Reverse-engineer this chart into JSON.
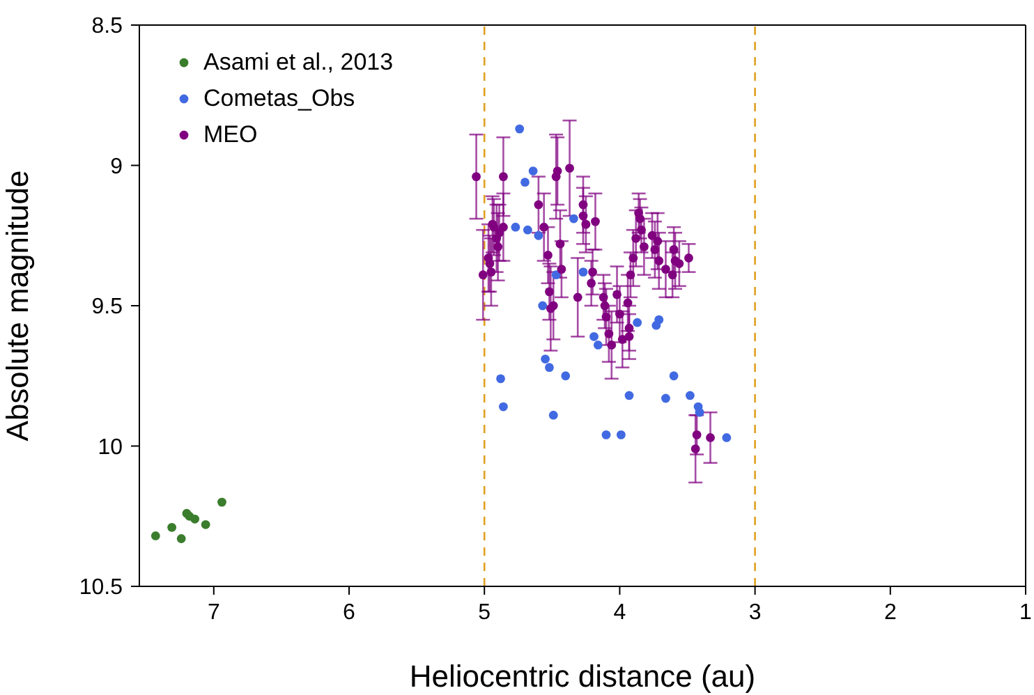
{
  "chart_data": {
    "type": "scatter",
    "xlabel": "Heliocentric distance (au)",
    "ylabel": "Absolute magnitude",
    "xlim": [
      7.55,
      1
    ],
    "xticks": [
      7,
      6,
      5,
      4,
      3,
      2,
      1
    ],
    "ylim": [
      10.5,
      8.5
    ],
    "yticks": [
      {
        "value": 8.5,
        "label": "8.5"
      },
      {
        "value": 9,
        "label": "9"
      },
      {
        "value": 9.5,
        "label": "9.5"
      },
      {
        "value": 10,
        "label": "10"
      },
      {
        "value": 10.5,
        "label": "10.5"
      }
    ],
    "legend": "top left",
    "marker": "circle",
    "ref_lines": [
      {
        "axis": "x",
        "value": 5,
        "color": "#e0a020",
        "line_style": "dashed"
      },
      {
        "axis": "x",
        "value": 3,
        "color": "#e0a020",
        "line_style": "dashed"
      }
    ],
    "series": [
      {
        "name": "Asami et al., 2013",
        "color": "#3a7d2c",
        "x": [
          7.43,
          7.31,
          7.24,
          7.2,
          7.18,
          7.14,
          7.06,
          6.94
        ],
        "values": [
          10.32,
          10.29,
          10.33,
          10.24,
          10.25,
          10.26,
          10.28,
          10.2
        ]
      },
      {
        "name": "Cometas_Obs",
        "color": "#4169e1",
        "x": [
          4.74,
          4.64,
          4.7,
          4.77,
          4.68,
          4.6,
          4.34,
          4.47,
          4.27,
          4.57,
          4.19,
          4.16,
          4.55,
          4.52,
          4.4,
          4.88,
          4.86,
          4.49,
          3.87,
          3.73,
          3.71,
          3.6,
          3.93,
          3.66,
          3.48,
          3.42,
          3.41,
          4.1,
          3.99,
          3.21
        ],
        "values": [
          8.87,
          9.02,
          9.06,
          9.22,
          9.23,
          9.25,
          9.19,
          9.39,
          9.38,
          9.5,
          9.61,
          9.64,
          9.69,
          9.72,
          9.75,
          9.76,
          9.86,
          9.89,
          9.56,
          9.57,
          9.55,
          9.75,
          9.82,
          9.83,
          9.82,
          9.86,
          9.88,
          9.96,
          9.96,
          9.97
        ]
      },
      {
        "name": "MEO",
        "color": "#800080",
        "x": [
          5.06,
          5.01,
          4.97,
          4.96,
          4.95,
          4.94,
          4.93,
          4.91,
          4.9,
          4.89,
          4.86,
          4.86,
          4.6,
          4.56,
          4.53,
          4.52,
          4.49,
          4.51,
          4.47,
          4.46,
          4.44,
          4.43,
          4.37,
          4.31,
          4.27,
          4.27,
          4.25,
          4.18,
          4.2,
          4.21,
          4.12,
          4.11,
          4.1,
          4.08,
          4.06,
          4.02,
          4.0,
          3.98,
          3.94,
          3.93,
          3.93,
          3.92,
          3.9,
          3.88,
          3.86,
          3.85,
          3.84,
          3.82,
          3.76,
          3.74,
          3.72,
          3.71,
          3.66,
          3.61,
          3.6,
          3.59,
          3.56,
          3.49,
          3.43,
          3.44,
          3.33
        ],
        "values": [
          9.04,
          9.39,
          9.33,
          9.35,
          9.38,
          9.21,
          9.22,
          9.26,
          9.29,
          9.24,
          9.22,
          9.04,
          9.14,
          9.22,
          9.32,
          9.45,
          9.5,
          9.51,
          9.04,
          9.02,
          9.28,
          9.37,
          9.01,
          9.47,
          9.14,
          9.18,
          9.21,
          9.2,
          9.38,
          9.42,
          9.47,
          9.5,
          9.54,
          9.6,
          9.64,
          9.46,
          9.53,
          9.62,
          9.49,
          9.58,
          9.61,
          9.39,
          9.33,
          9.26,
          9.17,
          9.19,
          9.23,
          9.29,
          9.25,
          9.3,
          9.27,
          9.34,
          9.37,
          9.39,
          9.3,
          9.34,
          9.35,
          9.33,
          9.96,
          10.01,
          9.97
        ],
        "errors": [
          0.15,
          0.16,
          0.12,
          0.1,
          0.12,
          0.1,
          0.1,
          0.12,
          0.12,
          0.1,
          0.12,
          0.14,
          0.1,
          0.12,
          0.1,
          0.1,
          0.12,
          0.15,
          0.15,
          0.12,
          0.12,
          0.1,
          0.17,
          0.14,
          0.1,
          0.1,
          0.1,
          0.1,
          0.08,
          0.08,
          0.08,
          0.08,
          0.1,
          0.1,
          0.12,
          0.1,
          0.1,
          0.1,
          0.1,
          0.08,
          0.08,
          0.08,
          0.1,
          0.1,
          0.07,
          0.07,
          0.08,
          0.1,
          0.08,
          0.1,
          0.1,
          0.1,
          0.1,
          0.08,
          0.08,
          0.1,
          0.08,
          0.05,
          0.07,
          0.12,
          0.09
        ]
      }
    ]
  }
}
